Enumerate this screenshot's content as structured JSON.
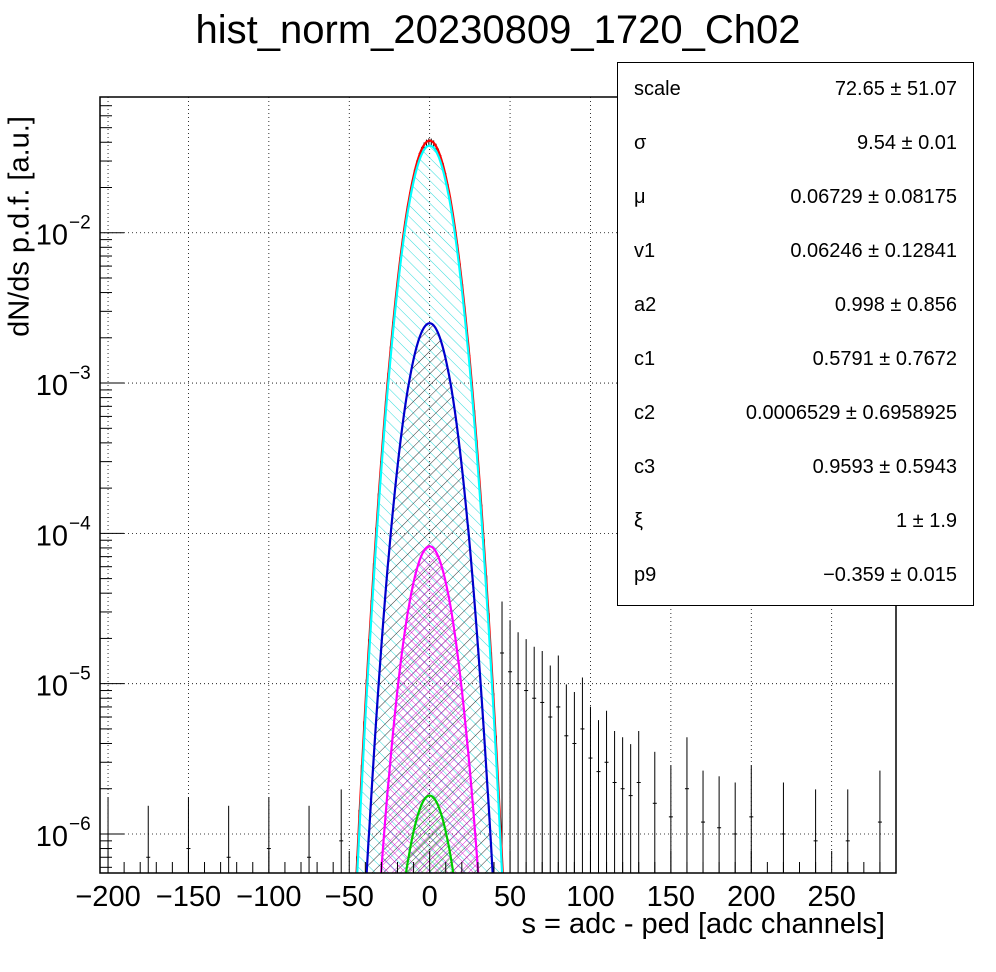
{
  "title": "hist_norm_20230809_1720_Ch02",
  "stats": [
    {
      "name": "scale",
      "value": "72.65 ± 51.07"
    },
    {
      "name": "σ",
      "value": "9.54 ± 0.01"
    },
    {
      "name": "μ",
      "value": "0.06729 ± 0.08175"
    },
    {
      "name": "v1",
      "value": "0.06246 ± 0.12841"
    },
    {
      "name": "a2",
      "value": "0.998 ± 0.856"
    },
    {
      "name": "c1",
      "value": "0.5791 ± 0.7672"
    },
    {
      "name": "c2",
      "value": "0.0006529 ± 0.6958925"
    },
    {
      "name": "c3",
      "value": "0.9593 ± 0.5943"
    },
    {
      "name": "ξ",
      "value": "1 ± 1.9"
    },
    {
      "name": "p9",
      "value": "−0.359 ± 0.015"
    }
  ],
  "chart_data": {
    "type": "line",
    "title": "hist_norm_20230809_1720_Ch02",
    "xlabel": "s = adc - ped [adc channels]",
    "ylabel": "dN/ds p.d.f. [a.u.]",
    "xlim": [
      -205,
      290
    ],
    "ylim": [
      5.5e-07,
      0.08
    ],
    "yscale": "log",
    "grid": true,
    "x_ticks": [
      -200,
      -150,
      -100,
      -50,
      0,
      50,
      100,
      150,
      200,
      250
    ],
    "x_tick_labels": [
      "−200",
      "−150",
      "−100",
      "−50",
      "0",
      "50",
      "100",
      "150",
      "200",
      "250"
    ],
    "y_ticks": [
      {
        "value": 1e-06,
        "mantissa": "10",
        "exp": "−6"
      },
      {
        "value": 1e-05,
        "mantissa": "10",
        "exp": "−5"
      },
      {
        "value": 0.0001,
        "mantissa": "10",
        "exp": "−4"
      },
      {
        "value": 0.001,
        "mantissa": "10",
        "exp": "−3"
      },
      {
        "value": 0.01,
        "mantissa": "10",
        "exp": "−2"
      }
    ],
    "series": [
      {
        "color": "#ff0000",
        "fill": "none",
        "peak": 0.041,
        "sigma": 9.6,
        "mu": 0.0
      },
      {
        "color": "#00ffff",
        "fill": "hatch-cyan",
        "peak": 0.038,
        "sigma": 9.54,
        "mu": 0.0
      },
      {
        "color": "#0000cc",
        "fill": "hatch-black",
        "peak": 0.0025,
        "sigma": 9.54,
        "mu": 0.0
      },
      {
        "color": "#ff00ff",
        "fill": "hatch-magenta",
        "peak": 8.2e-05,
        "sigma": 9.54,
        "mu": 0.0
      },
      {
        "color": "#00cc00",
        "fill": "hatch-green",
        "peak": 1.8e-06,
        "sigma": 9.54,
        "mu": 0.0
      }
    ],
    "histogram": {
      "color": "#000000",
      "peak": 0.04,
      "sigma": 9.7,
      "tail": [
        {
          "x": 45,
          "y": 1.6e-05
        },
        {
          "x": 50,
          "y": 1.2e-05
        },
        {
          "x": 55,
          "y": 1e-05
        },
        {
          "x": 60,
          "y": 9e-06
        },
        {
          "x": 65,
          "y": 8e-06
        },
        {
          "x": 70,
          "y": 7.5e-06
        },
        {
          "x": 75,
          "y": 6e-06
        },
        {
          "x": 80,
          "y": 7e-06
        },
        {
          "x": 85,
          "y": 4.5e-06
        },
        {
          "x": 90,
          "y": 4e-06
        },
        {
          "x": 95,
          "y": 5e-06
        },
        {
          "x": 100,
          "y": 3.2e-06
        },
        {
          "x": 105,
          "y": 2.6e-06
        },
        {
          "x": 110,
          "y": 3e-06
        },
        {
          "x": 115,
          "y": 2.2e-06
        },
        {
          "x": 120,
          "y": 2e-06
        },
        {
          "x": 125,
          "y": 1.8e-06
        },
        {
          "x": 130,
          "y": 2.2e-06
        },
        {
          "x": 140,
          "y": 1.6e-06
        },
        {
          "x": 150,
          "y": 1.3e-06
        },
        {
          "x": 160,
          "y": 2e-06
        },
        {
          "x": 170,
          "y": 1.2e-06
        },
        {
          "x": 180,
          "y": 1.1e-06
        },
        {
          "x": 190,
          "y": 1e-06
        },
        {
          "x": 200,
          "y": 1.3e-06
        },
        {
          "x": 220,
          "y": 1e-06
        },
        {
          "x": 240,
          "y": 9e-07
        },
        {
          "x": 260,
          "y": 9e-07
        },
        {
          "x": 280,
          "y": 1.2e-06
        }
      ],
      "left_tail": [
        {
          "x": -200,
          "y": 8e-07
        },
        {
          "x": -175,
          "y": 7e-07
        },
        {
          "x": -150,
          "y": 8e-07
        },
        {
          "x": -125,
          "y": 7e-07
        },
        {
          "x": -100,
          "y": 8e-07
        },
        {
          "x": -75,
          "y": 7e-07
        },
        {
          "x": -55,
          "y": 9e-07
        }
      ]
    }
  }
}
